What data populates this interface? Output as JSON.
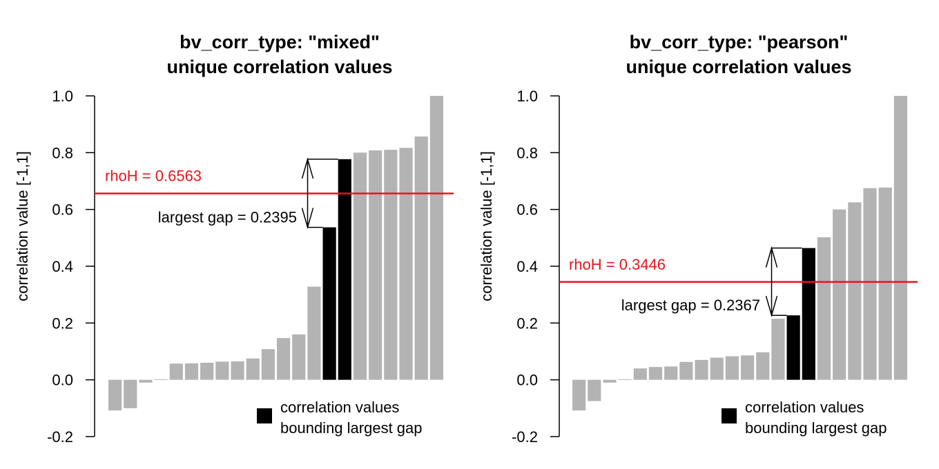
{
  "chart_data": [
    {
      "type": "bar",
      "title": [
        "bv_corr_type: \"mixed\"",
        "unique correlation values"
      ],
      "ylabel": "correlation value [-1,1]",
      "ylim": [
        -0.2,
        1.0
      ],
      "yticks": [
        "-0.2",
        "0.0",
        "0.2",
        "0.4",
        "0.6",
        "0.8",
        "1.0"
      ],
      "values": [
        -0.108,
        -0.1,
        -0.01,
        0.002,
        0.057,
        0.058,
        0.06,
        0.064,
        0.065,
        0.075,
        0.108,
        0.147,
        0.16,
        0.328,
        0.537,
        0.777,
        0.8,
        0.808,
        0.81,
        0.817,
        0.857,
        1.0
      ],
      "highlight_indices": [
        14,
        15
      ],
      "bar_color": "#b3b3b3",
      "highlight_color": "#000000",
      "rho_line": {
        "value": 0.6563,
        "label": "rhoH = 0.6563",
        "color": "#e8141b"
      },
      "gap": {
        "lower": 0.537,
        "upper": 0.777,
        "label": "largest gap = 0.2395"
      },
      "legend": {
        "entries": [
          "correlation values",
          "bounding largest gap"
        ],
        "position": "bottom-right"
      }
    },
    {
      "type": "bar",
      "title": [
        "bv_corr_type: \"pearson\"",
        "unique correlation values"
      ],
      "ylabel": "correlation value [-1,1]",
      "ylim": [
        -0.2,
        1.0
      ],
      "yticks": [
        "-0.2",
        "0.0",
        "0.2",
        "0.4",
        "0.6",
        "0.8",
        "1.0"
      ],
      "values": [
        -0.108,
        -0.075,
        -0.01,
        0.002,
        0.04,
        0.045,
        0.047,
        0.063,
        0.07,
        0.078,
        0.083,
        0.086,
        0.097,
        0.215,
        0.227,
        0.464,
        0.502,
        0.6,
        0.625,
        0.675,
        0.677,
        1.0
      ],
      "highlight_indices": [
        14,
        15
      ],
      "bar_color": "#b3b3b3",
      "highlight_color": "#000000",
      "rho_line": {
        "value": 0.3446,
        "label": "rhoH = 0.3446",
        "color": "#e8141b"
      },
      "gap": {
        "lower": 0.227,
        "upper": 0.464,
        "label": "largest gap = 0.2367"
      },
      "legend": {
        "entries": [
          "correlation values",
          "bounding largest gap"
        ],
        "position": "bottom-right"
      }
    }
  ]
}
